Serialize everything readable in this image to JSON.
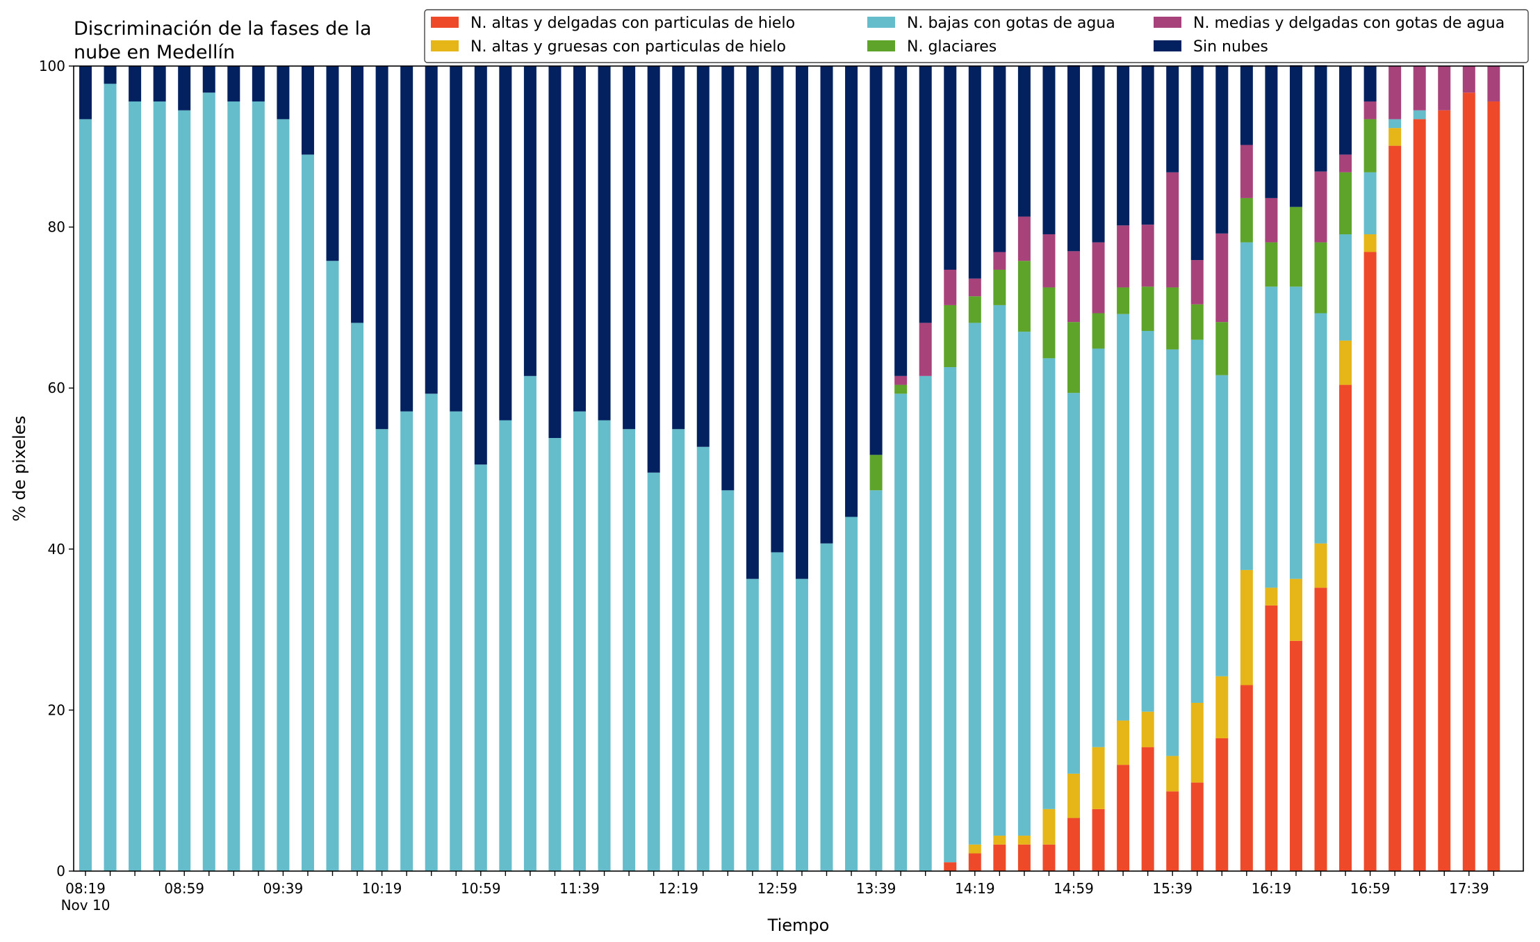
{
  "chart_data": {
    "type": "bar",
    "stacked": true,
    "title": "Discriminación de la fases de la\nnube en Medellín",
    "xlabel": "Tiempo",
    "ylabel": "% de pixeles",
    "ylim": [
      0,
      100
    ],
    "yticks": [
      0,
      20,
      40,
      60,
      80,
      100
    ],
    "grid": false,
    "legend_position": "top-right",
    "categories": [
      "08:19",
      "08:29",
      "08:39",
      "08:49",
      "08:59",
      "09:09",
      "09:19",
      "09:29",
      "09:39",
      "09:49",
      "09:59",
      "10:09",
      "10:19",
      "10:29",
      "10:39",
      "10:49",
      "10:59",
      "11:09",
      "11:19",
      "11:29",
      "11:39",
      "11:49",
      "11:59",
      "12:09",
      "12:19",
      "12:29",
      "12:39",
      "12:49",
      "12:59",
      "13:09",
      "13:19",
      "13:29",
      "13:39",
      "13:49",
      "13:59",
      "14:09",
      "14:19",
      "14:29",
      "14:39",
      "14:49",
      "14:59",
      "15:09",
      "15:19",
      "15:29",
      "15:39",
      "15:49",
      "15:59",
      "16:09",
      "16:19",
      "16:29",
      "16:39",
      "16:49",
      "16:59",
      "17:09",
      "17:19",
      "17:29",
      "17:39",
      "17:49"
    ],
    "xtick_labels": [
      {
        "index": 0,
        "label": "08:19",
        "sublabel": "Nov 10"
      },
      {
        "index": 4,
        "label": "08:59"
      },
      {
        "index": 8,
        "label": "09:39"
      },
      {
        "index": 12,
        "label": "10:19"
      },
      {
        "index": 16,
        "label": "10:59"
      },
      {
        "index": 20,
        "label": "11:39"
      },
      {
        "index": 24,
        "label": "12:19"
      },
      {
        "index": 28,
        "label": "12:59"
      },
      {
        "index": 32,
        "label": "13:39"
      },
      {
        "index": 36,
        "label": "14:19"
      },
      {
        "index": 40,
        "label": "14:59"
      },
      {
        "index": 44,
        "label": "15:39"
      },
      {
        "index": 48,
        "label": "16:19"
      },
      {
        "index": 52,
        "label": "16:59"
      },
      {
        "index": 56,
        "label": "17:39"
      }
    ],
    "series": [
      {
        "name": "N. altas y delgadas con particulas de hielo",
        "color": "#ee4a2a",
        "values": [
          0,
          0,
          0,
          0,
          0,
          0,
          0,
          0,
          0,
          0,
          0,
          0,
          0,
          0,
          0,
          0,
          0,
          0,
          0,
          0,
          0,
          0,
          0,
          0,
          0,
          0,
          0,
          0,
          0,
          0,
          0,
          0,
          0,
          0,
          0,
          1.1,
          2.2,
          3.3,
          3.3,
          3.3,
          6.6,
          7.7,
          13.2,
          15.4,
          9.9,
          11.0,
          16.5,
          23.1,
          33.0,
          28.6,
          35.2,
          60.4,
          76.9,
          90.1,
          93.4,
          94.5,
          96.7,
          95.6
        ]
      },
      {
        "name": "N. altas y gruesas con particulas de hielo",
        "color": "#e6b517",
        "values": [
          0,
          0,
          0,
          0,
          0,
          0,
          0,
          0,
          0,
          0,
          0,
          0,
          0,
          0,
          0,
          0,
          0,
          0,
          0,
          0,
          0,
          0,
          0,
          0,
          0,
          0,
          0,
          0,
          0,
          0,
          0,
          0,
          0,
          0,
          0,
          0,
          1.1,
          1.1,
          1.1,
          4.4,
          5.5,
          7.7,
          5.5,
          4.4,
          4.4,
          9.9,
          7.7,
          14.3,
          2.2,
          7.7,
          5.5,
          5.5,
          2.2,
          2.2,
          0,
          0,
          0,
          0
        ]
      },
      {
        "name": "N. bajas con gotas de agua",
        "color": "#65bcca",
        "values": [
          93.4,
          97.8,
          95.6,
          95.6,
          94.5,
          96.7,
          95.6,
          95.6,
          93.4,
          89.0,
          75.8,
          68.1,
          54.9,
          57.1,
          59.3,
          57.1,
          50.5,
          56.0,
          61.5,
          53.8,
          57.1,
          56.0,
          54.9,
          49.5,
          54.9,
          52.7,
          47.3,
          36.3,
          39.6,
          36.3,
          40.7,
          44.0,
          47.3,
          59.3,
          61.5,
          61.5,
          64.8,
          65.9,
          62.6,
          56.0,
          47.3,
          49.5,
          50.5,
          47.3,
          50.5,
          45.1,
          37.4,
          40.7,
          37.4,
          36.3,
          28.6,
          13.2,
          7.7,
          1.1,
          1.1,
          0,
          0,
          0
        ]
      },
      {
        "name": "N. glaciares",
        "color": "#5ea32a",
        "values": [
          0,
          0,
          0,
          0,
          0,
          0,
          0,
          0,
          0,
          0,
          0,
          0,
          0,
          0,
          0,
          0,
          0,
          0,
          0,
          0,
          0,
          0,
          0,
          0,
          0,
          0,
          0,
          0,
          0,
          0,
          0,
          0,
          4.4,
          1.1,
          0,
          7.7,
          3.3,
          4.4,
          8.8,
          8.8,
          8.8,
          4.4,
          3.3,
          5.5,
          7.7,
          4.4,
          6.6,
          5.5,
          5.5,
          9.9,
          8.8,
          7.7,
          6.6,
          0,
          0,
          0,
          0,
          0
        ]
      },
      {
        "name": "N. medias y delgadas con gotas de agua",
        "color": "#a7437a",
        "values": [
          0,
          0,
          0,
          0,
          0,
          0,
          0,
          0,
          0,
          0,
          0,
          0,
          0,
          0,
          0,
          0,
          0,
          0,
          0,
          0,
          0,
          0,
          0,
          0,
          0,
          0,
          0,
          0,
          0,
          0,
          0,
          0,
          0,
          1.1,
          6.6,
          4.4,
          2.2,
          2.2,
          5.5,
          6.6,
          8.8,
          8.8,
          7.7,
          7.7,
          14.3,
          5.5,
          11.0,
          6.6,
          5.5,
          0,
          8.8,
          2.2,
          2.2,
          6.6,
          5.5,
          5.5,
          3.3,
          4.4
        ]
      },
      {
        "name": "Sin nubes",
        "color": "#03205f",
        "values": [
          6.6,
          2.2,
          4.4,
          4.4,
          5.5,
          3.3,
          4.4,
          4.4,
          6.6,
          11.0,
          24.2,
          31.9,
          45.1,
          42.9,
          40.7,
          42.9,
          49.5,
          44.0,
          38.5,
          46.2,
          42.9,
          44.0,
          45.1,
          50.5,
          45.1,
          47.3,
          52.7,
          63.7,
          60.4,
          63.7,
          59.3,
          56.0,
          48.3,
          38.5,
          31.9,
          25.3,
          26.4,
          23.1,
          18.7,
          20.9,
          23.1,
          22.0,
          19.8,
          19.8,
          13.2,
          24.2,
          20.9,
          9.9,
          16.5,
          17.6,
          13.2,
          11.0,
          4.4,
          0,
          0,
          0,
          0,
          0
        ]
      }
    ]
  }
}
